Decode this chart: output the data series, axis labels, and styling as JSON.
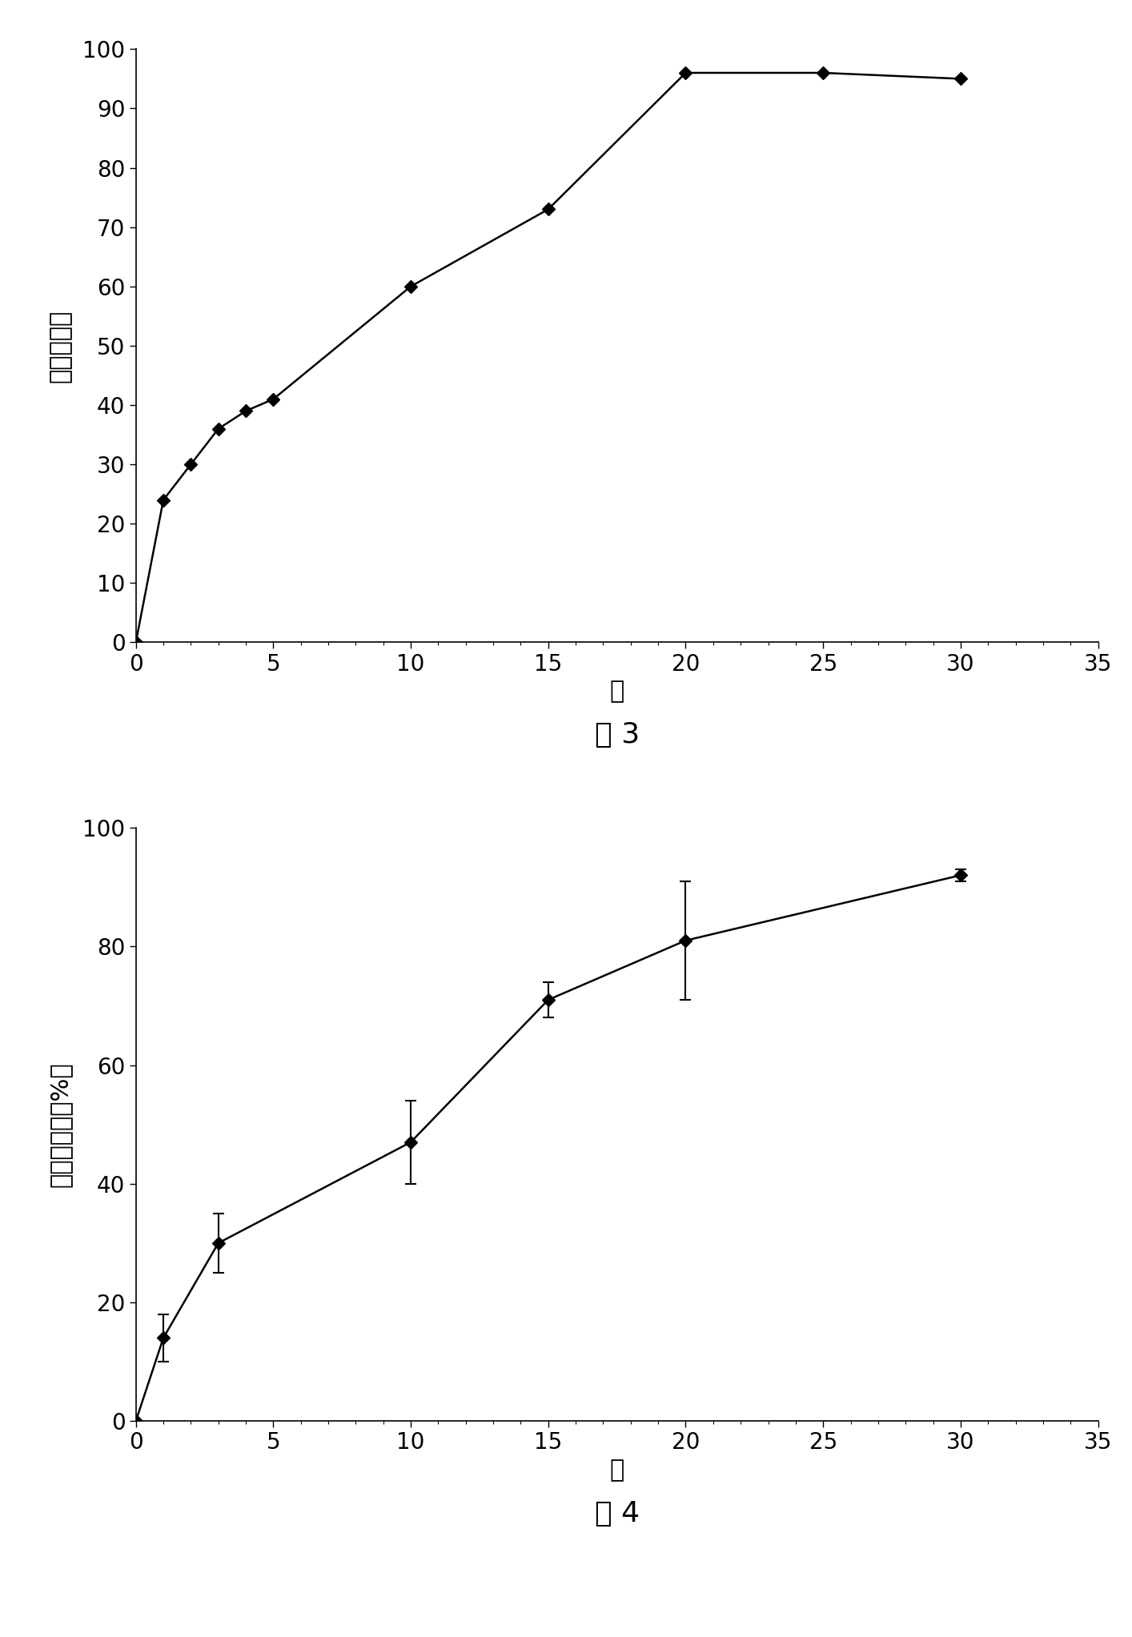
{
  "chart1": {
    "x": [
      0,
      1,
      2,
      3,
      4,
      5,
      10,
      15,
      20,
      25,
      30
    ],
    "y": [
      0,
      24,
      30,
      36,
      39,
      41,
      60,
      73,
      96,
      96,
      95
    ],
    "ylabel": "累计释放量",
    "xlabel": "天",
    "xlim": [
      0,
      35
    ],
    "ylim": [
      0,
      100
    ],
    "yticks": [
      0,
      10,
      20,
      30,
      40,
      50,
      60,
      70,
      80,
      90,
      100
    ],
    "xticks": [
      0,
      5,
      10,
      15,
      20,
      25,
      30,
      35
    ],
    "caption": "图 3"
  },
  "chart2": {
    "x": [
      0,
      1,
      3,
      10,
      15,
      20,
      30
    ],
    "y": [
      0,
      14,
      30,
      47,
      71,
      81,
      92
    ],
    "yerr": [
      0,
      4,
      5,
      7,
      3,
      10,
      1
    ],
    "ylabel": "累积释放量（%）",
    "xlabel": "天",
    "xlim": [
      0,
      35
    ],
    "ylim": [
      0,
      100
    ],
    "yticks": [
      0,
      20,
      40,
      60,
      80,
      100
    ],
    "xticks": [
      0,
      5,
      10,
      15,
      20,
      25,
      30,
      35
    ],
    "caption": "图 4"
  },
  "bg_color": "#ffffff",
  "line_color": "#000000",
  "marker": "D",
  "markersize": 8,
  "linewidth": 1.8,
  "fontsize_label": 22,
  "fontsize_tick": 20,
  "fontsize_caption": 26
}
